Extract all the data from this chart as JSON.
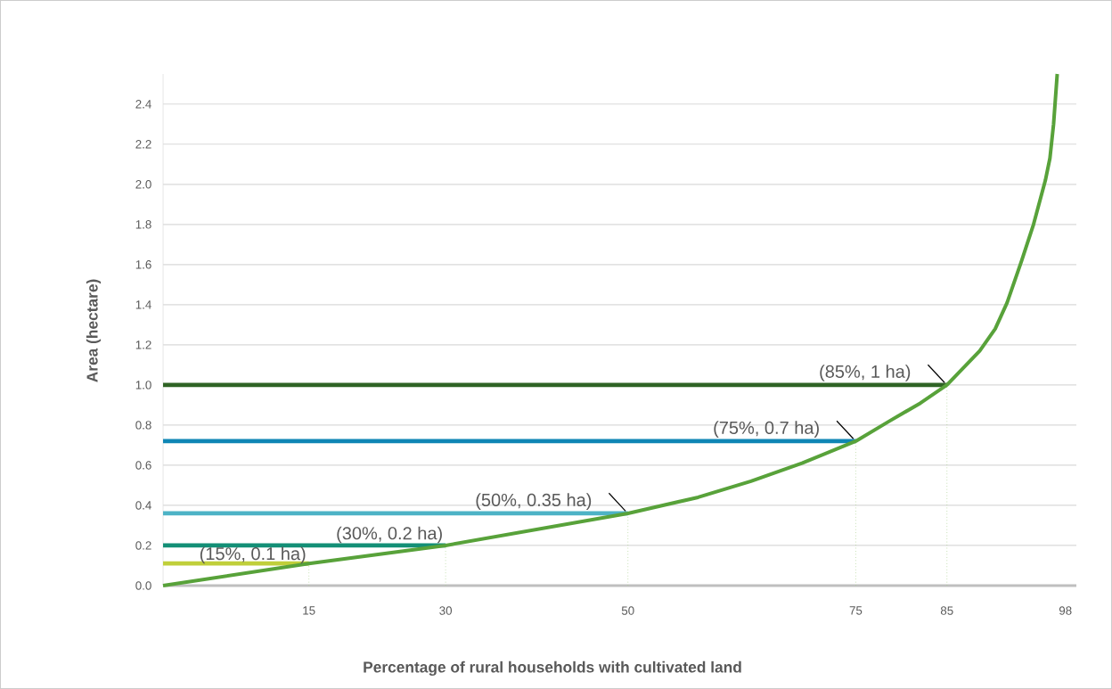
{
  "chart_data": {
    "type": "line",
    "xlabel": "Percentage of rural households with cultivated land",
    "ylabel": "Area (hectare)",
    "xlim": [
      -1,
      99.2
    ],
    "ylim": [
      0,
      2.55
    ],
    "xticks": [
      15,
      30,
      50,
      75,
      85,
      98
    ],
    "yticks": [
      {
        "value": 0,
        "label": "0.0"
      },
      0.2,
      0.4,
      0.6,
      0.8,
      {
        "value": 1,
        "label": "1.0"
      },
      1.2,
      1.4,
      1.6,
      1.8,
      {
        "value": 2,
        "label": "2.0"
      },
      2.2,
      2.4
    ],
    "grid": "y",
    "line_style": "solid",
    "series": [
      {
        "color": "#c0cf3a",
        "x": [
          -1,
          15
        ],
        "values": [
          0.11,
          0.11
        ]
      },
      {
        "color": "#138f76",
        "x": [
          -1,
          30
        ],
        "values": [
          0.2,
          0.2
        ]
      },
      {
        "color": "#4db3c6",
        "x": [
          -1,
          50
        ],
        "values": [
          0.36,
          0.36
        ]
      },
      {
        "color": "#0f86b5",
        "x": [
          -1,
          75
        ],
        "values": [
          0.72,
          0.72
        ]
      },
      {
        "color": "#2f6325",
        "x": [
          -1,
          85
        ],
        "values": [
          1.0,
          1.0
        ]
      },
      {
        "color": "#a9d18e",
        "line_style": "dotted",
        "x": [
          15,
          15
        ],
        "values": [
          0,
          0.11
        ]
      },
      {
        "color": "#a9d18e",
        "line_style": "dotted",
        "x": [
          30,
          30
        ],
        "values": [
          0,
          0.2
        ]
      },
      {
        "color": "#a9d18e",
        "line_style": "dotted",
        "x": [
          50,
          50
        ],
        "values": [
          0,
          0.36
        ]
      },
      {
        "color": "#a9d18e",
        "line_style": "dotted",
        "x": [
          75,
          75
        ],
        "values": [
          0,
          0.72
        ]
      },
      {
        "color": "#a9d18e",
        "line_style": "dotted",
        "x": [
          85,
          85
        ],
        "values": [
          0,
          1.0
        ]
      },
      {
        "color": "#58a23a",
        "x": [
          -1,
          15,
          30,
          50,
          57.7,
          63.5,
          69.1,
          75,
          78.7,
          82.1,
          85,
          88.6,
          90.3,
          91.6,
          93.2,
          94.5,
          95.8,
          96.3,
          96.7,
          97.1
        ],
        "values": [
          0,
          0.11,
          0.2,
          0.36,
          0.44,
          0.52,
          0.61,
          0.72,
          0.82,
          0.91,
          1.0,
          1.17,
          1.28,
          1.41,
          1.62,
          1.8,
          2.02,
          2.13,
          2.3,
          2.55
        ]
      }
    ],
    "annotations": [
      {
        "text": "(15%, 0.1 ha)",
        "x": 15,
        "y": 0.11
      },
      {
        "text": "(30%, 0.2 ha)",
        "x": 30,
        "y": 0.2
      },
      {
        "text": "(50%, 0.35 ha)",
        "x": 50,
        "y": 0.36
      },
      {
        "text": "(75%, 0.7 ha)",
        "x": 75,
        "y": 0.72
      },
      {
        "text": "(85%, 1 ha)",
        "x": 85,
        "y": 1.0
      }
    ]
  }
}
